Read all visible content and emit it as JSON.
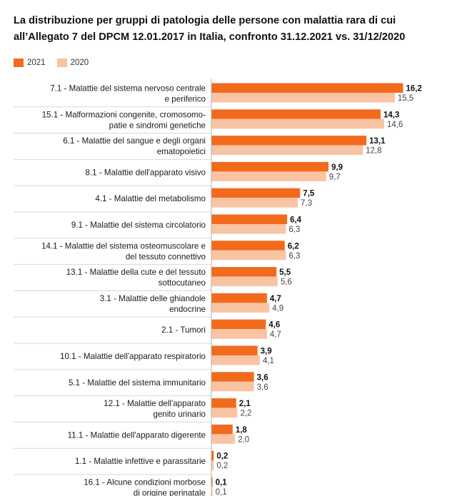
{
  "title": "La distribuzione per gruppi di patologia delle persone con malattia rara di cui all’Allegato 7 del DPCM 12.01.2017 in Italia, confronto 31.12.2021 vs. 31/12/2020",
  "colors": {
    "y2021": "#f26b1d",
    "y2020": "#f9c4a4",
    "axis": "#b0b0b0",
    "separator": "#d8d8d8"
  },
  "chart_data": {
    "type": "bar",
    "orientation": "horizontal",
    "categories": [
      [
        "7.1 - Malattie del sistema nervoso centrale",
        "e periferico"
      ],
      [
        "15.1 - Malformazioni congenite, cromosomo-",
        "patie e sindromi genetiche"
      ],
      [
        "6.1 - Malattie del sangue e degli organi",
        "ematopoietici"
      ],
      [
        "8.1 - Malattie dell'apparato visivo"
      ],
      [
        "4.1 - Malattie del metabolismo"
      ],
      [
        "9.1 - Malattie del sistema circolatorio"
      ],
      [
        "14.1 - Malattie del sistema osteomuscolare e",
        "del tessuto connettivo"
      ],
      [
        "13.1 - Malattie della cute e del tessuto",
        "sottocutaneo"
      ],
      [
        "3.1 - Malattie delle ghiandole",
        "endocrine"
      ],
      [
        "2.1 - Tumori"
      ],
      [
        "10.1 - Malattie dell'apparato respiratorio"
      ],
      [
        "5.1 - Malattie del sistema immunitario"
      ],
      [
        "12.1 - Malattie dell'apparato",
        "genito urinario"
      ],
      [
        "11.1 - Malattie dell'apparato digerente"
      ],
      [
        "1.1 - Malattie infettive e parassitarie"
      ],
      [
        "16.1 - Alcune condizioni morbose",
        "di origine perinatale"
      ]
    ],
    "series": [
      {
        "name": "2021",
        "values": [
          16.2,
          14.3,
          13.1,
          9.9,
          7.5,
          6.4,
          6.2,
          5.5,
          4.7,
          4.6,
          3.9,
          3.6,
          2.1,
          1.8,
          0.2,
          0.1
        ],
        "labels": [
          "16,2",
          "14,3",
          "13,1",
          "9,9",
          "7,5",
          "6,4",
          "6,2",
          "5,5",
          "4,7",
          "4,6",
          "3,9",
          "3,6",
          "2,1",
          "1,8",
          "0,2",
          "0,1"
        ]
      },
      {
        "name": "2020",
        "values": [
          15.5,
          14.6,
          12.8,
          9.7,
          7.3,
          6.3,
          6.3,
          5.6,
          4.9,
          4.7,
          4.1,
          3.6,
          2.2,
          2.0,
          0.2,
          0.1
        ],
        "labels": [
          "15,5",
          "14,6",
          "12,8",
          "9,7",
          "7,3",
          "6,3",
          "6,3",
          "5,6",
          "4,9",
          "4,7",
          "4,1",
          "3,6",
          "2,2",
          "2,0",
          "0,2",
          "0,1"
        ]
      }
    ],
    "xlim": [
      0,
      16.2
    ],
    "legend": "top-left",
    "grid": false
  }
}
